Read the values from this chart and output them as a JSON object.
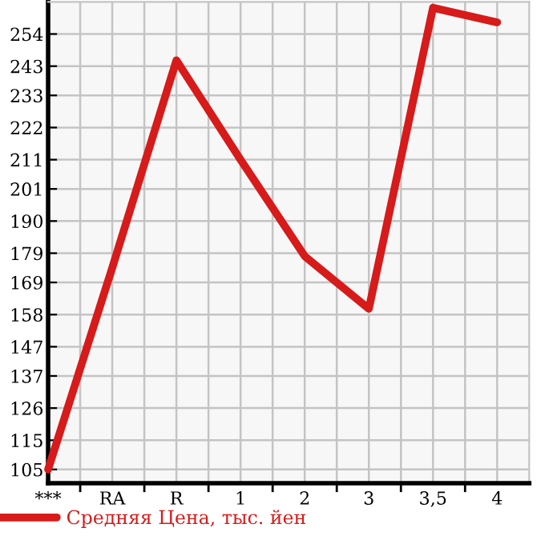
{
  "chart_data": {
    "type": "line",
    "categories": [
      "***",
      "RA",
      "R",
      "1",
      "2",
      "3",
      "3,5",
      "4"
    ],
    "series": [
      {
        "name": "Средняя Цена, тыс. йен",
        "color": "#d71a1a",
        "values": [
          105,
          174,
          245,
          211,
          178,
          160,
          263,
          258
        ]
      }
    ],
    "ylim": [
      100.3,
      265
    ],
    "yticks": [
      105,
      115,
      126,
      137,
      147,
      158,
      169,
      179,
      190,
      201,
      211,
      222,
      233,
      243,
      254
    ],
    "grid": true,
    "legend": "bottom left",
    "marker": "none",
    "line_style": "solid"
  }
}
